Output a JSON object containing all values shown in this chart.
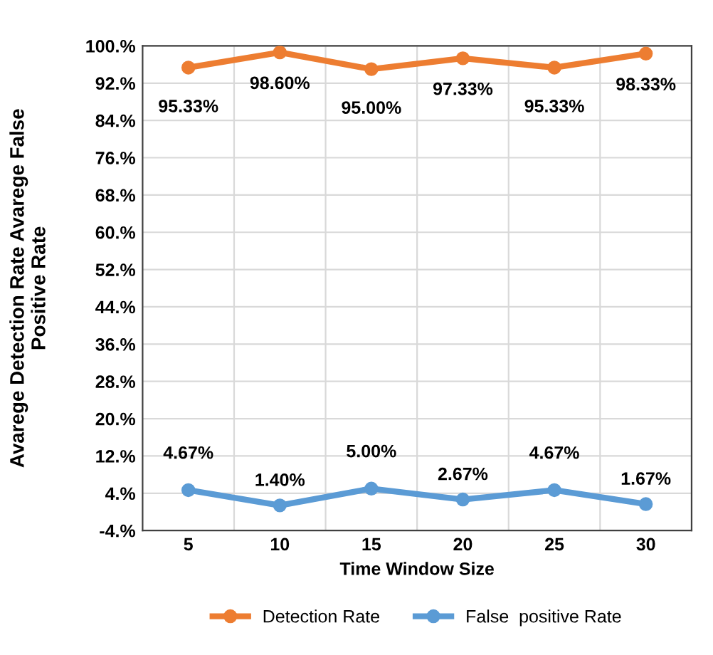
{
  "chart_data": {
    "type": "line",
    "xlabel": "Time Window Size",
    "ylabel": "Avarege Detection Rate Avarege False\nPositive Rate",
    "categories": [
      "5",
      "10",
      "15",
      "20",
      "25",
      "30"
    ],
    "series": [
      {
        "name": "Detection Rate",
        "color": "#ed7d31",
        "values": [
          95.33,
          98.6,
          95.0,
          97.33,
          95.33,
          98.33
        ],
        "value_labels": [
          "95.33%",
          "98.60%",
          "95.00%",
          "97.33%",
          "95.33%",
          "98.33%"
        ]
      },
      {
        "name": "False  positive Rate",
        "color": "#5b9bd5",
        "values": [
          4.67,
          1.4,
          5.0,
          2.67,
          4.67,
          1.67
        ],
        "value_labels": [
          "4.67%",
          "1.40%",
          "5.00%",
          "2.67%",
          "4.67%",
          "1.67%"
        ]
      }
    ],
    "ylim": [
      -4,
      100
    ],
    "yticks": [
      {
        "value": -4,
        "label": "-4.%"
      },
      {
        "value": 4,
        "label": "4.%"
      },
      {
        "value": 12,
        "label": "12.%"
      },
      {
        "value": 20,
        "label": "20.%"
      },
      {
        "value": 28,
        "label": "28.%"
      },
      {
        "value": 36,
        "label": "36.%"
      },
      {
        "value": 44,
        "label": "44.%"
      },
      {
        "value": 52,
        "label": "52.%"
      },
      {
        "value": 60,
        "label": "60.%"
      },
      {
        "value": 68,
        "label": "68.%"
      },
      {
        "value": 76,
        "label": "76.%"
      },
      {
        "value": 84,
        "label": "84.%"
      },
      {
        "value": 92,
        "label": "92.%"
      },
      {
        "value": 100,
        "label": "100.%"
      }
    ],
    "grid": true,
    "legend": "bottom",
    "marker": "circle",
    "line_style": "solid"
  }
}
